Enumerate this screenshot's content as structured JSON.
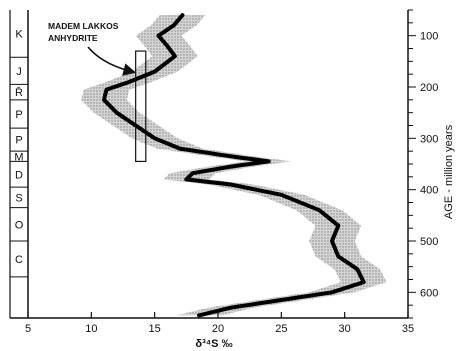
{
  "chart_data": {
    "type": "line",
    "title": "",
    "xlabel": "δ³⁴S ‰",
    "ylabel": "AGE - million years",
    "xlim": [
      5,
      35
    ],
    "ylim": [
      50,
      650
    ],
    "x_ticks": [
      5,
      10,
      15,
      20,
      25,
      30,
      35
    ],
    "y_ticks": [
      100,
      200,
      300,
      400,
      500,
      600
    ],
    "period_labels": [
      {
        "label": "K",
        "from": 50,
        "to": 142
      },
      {
        "label": "J",
        "from": 142,
        "to": 195
      },
      {
        "label": "R̄",
        "from": 195,
        "to": 225
      },
      {
        "label": "P",
        "from": 225,
        "to": 280
      },
      {
        "label": "P",
        "from": 280,
        "to": 325
      },
      {
        "label": "M",
        "from": 325,
        "to": 345
      },
      {
        "label": "D",
        "from": 345,
        "to": 395
      },
      {
        "label": "S",
        "from": 395,
        "to": 435
      },
      {
        "label": "O",
        "from": 435,
        "to": 500
      },
      {
        "label": "C",
        "from": 500,
        "to": 570
      }
    ],
    "series": [
      {
        "values": [
          {
            "x": 17.2,
            "y": 60
          },
          {
            "x": 16.5,
            "y": 80
          },
          {
            "x": 15.3,
            "y": 100
          },
          {
            "x": 16.0,
            "y": 120
          },
          {
            "x": 16.6,
            "y": 140
          },
          {
            "x": 15.0,
            "y": 170
          },
          {
            "x": 13.0,
            "y": 190
          },
          {
            "x": 11.2,
            "y": 205
          },
          {
            "x": 11.0,
            "y": 225
          },
          {
            "x": 12.0,
            "y": 250
          },
          {
            "x": 13.5,
            "y": 275
          },
          {
            "x": 15.0,
            "y": 300
          },
          {
            "x": 17.0,
            "y": 320
          },
          {
            "x": 21.0,
            "y": 335
          },
          {
            "x": 24.0,
            "y": 345
          },
          {
            "x": 21.0,
            "y": 355
          },
          {
            "x": 18.0,
            "y": 368
          },
          {
            "x": 17.5,
            "y": 380
          },
          {
            "x": 21.0,
            "y": 390
          },
          {
            "x": 25.0,
            "y": 410
          },
          {
            "x": 28.0,
            "y": 440
          },
          {
            "x": 29.5,
            "y": 470
          },
          {
            "x": 29.0,
            "y": 500
          },
          {
            "x": 29.5,
            "y": 530
          },
          {
            "x": 31.0,
            "y": 555
          },
          {
            "x": 31.5,
            "y": 580
          },
          {
            "x": 29.0,
            "y": 600
          },
          {
            "x": 25.0,
            "y": 615
          },
          {
            "x": 21.0,
            "y": 630
          },
          {
            "x": 18.5,
            "y": 645
          }
        ]
      }
    ],
    "uncertainty_band_halfwidth": 1.8,
    "annotation": {
      "lines": [
        "MADEM LAKKOS",
        "ANHYDRITE"
      ],
      "box_x": [
        13.5,
        14.3
      ],
      "box_y": [
        130,
        345
      ]
    }
  }
}
